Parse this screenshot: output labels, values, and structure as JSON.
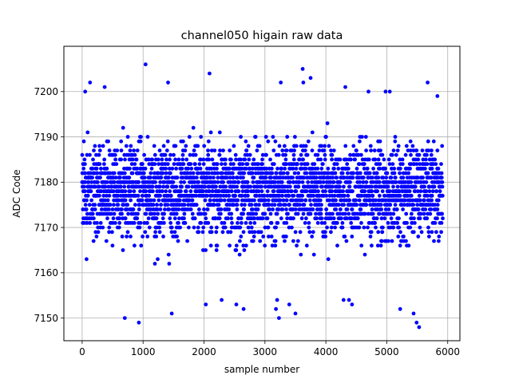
{
  "chart_data": {
    "type": "scatter",
    "title": "channel050 higain raw data",
    "xlabel": "sample number",
    "ylabel": "ADC Code",
    "xlim": [
      -300,
      6200
    ],
    "ylim": [
      7145,
      7210
    ],
    "xticks": [
      0,
      1000,
      2000,
      3000,
      4000,
      5000,
      6000
    ],
    "yticks": [
      7150,
      7160,
      7170,
      7180,
      7190,
      7200
    ],
    "grid": true,
    "marker_color": "#0000ff",
    "n_samples": 5920,
    "value_range": [
      7148,
      7206
    ],
    "band_mean": 7178,
    "band_std": 6.5,
    "approx_points": [
      {
        "x": 1040,
        "y": 7206
      },
      {
        "x": 3620,
        "y": 7205
      },
      {
        "x": 2090,
        "y": 7204
      },
      {
        "x": 3750,
        "y": 7203
      },
      {
        "x": 3630,
        "y": 7202
      },
      {
        "x": 1410,
        "y": 7202
      },
      {
        "x": 130,
        "y": 7202
      },
      {
        "x": 5670,
        "y": 7202
      },
      {
        "x": 3260,
        "y": 7202
      },
      {
        "x": 370,
        "y": 7201
      },
      {
        "x": 4320,
        "y": 7201
      },
      {
        "x": 5050,
        "y": 7200
      },
      {
        "x": 4980,
        "y": 7200
      },
      {
        "x": 50,
        "y": 7200
      },
      {
        "x": 4700,
        "y": 7200
      },
      {
        "x": 5830,
        "y": 7199
      },
      {
        "x": 3200,
        "y": 7154
      },
      {
        "x": 4380,
        "y": 7154
      },
      {
        "x": 4290,
        "y": 7154
      },
      {
        "x": 2290,
        "y": 7154
      },
      {
        "x": 2530,
        "y": 7153
      },
      {
        "x": 3400,
        "y": 7153
      },
      {
        "x": 4430,
        "y": 7153
      },
      {
        "x": 2030,
        "y": 7153
      },
      {
        "x": 2650,
        "y": 7152
      },
      {
        "x": 3180,
        "y": 7152
      },
      {
        "x": 5220,
        "y": 7152
      },
      {
        "x": 1470,
        "y": 7151
      },
      {
        "x": 3500,
        "y": 7151
      },
      {
        "x": 5440,
        "y": 7151
      },
      {
        "x": 700,
        "y": 7150
      },
      {
        "x": 3230,
        "y": 7150
      },
      {
        "x": 930,
        "y": 7149
      },
      {
        "x": 5490,
        "y": 7149
      },
      {
        "x": 5530,
        "y": 7148
      }
    ]
  }
}
